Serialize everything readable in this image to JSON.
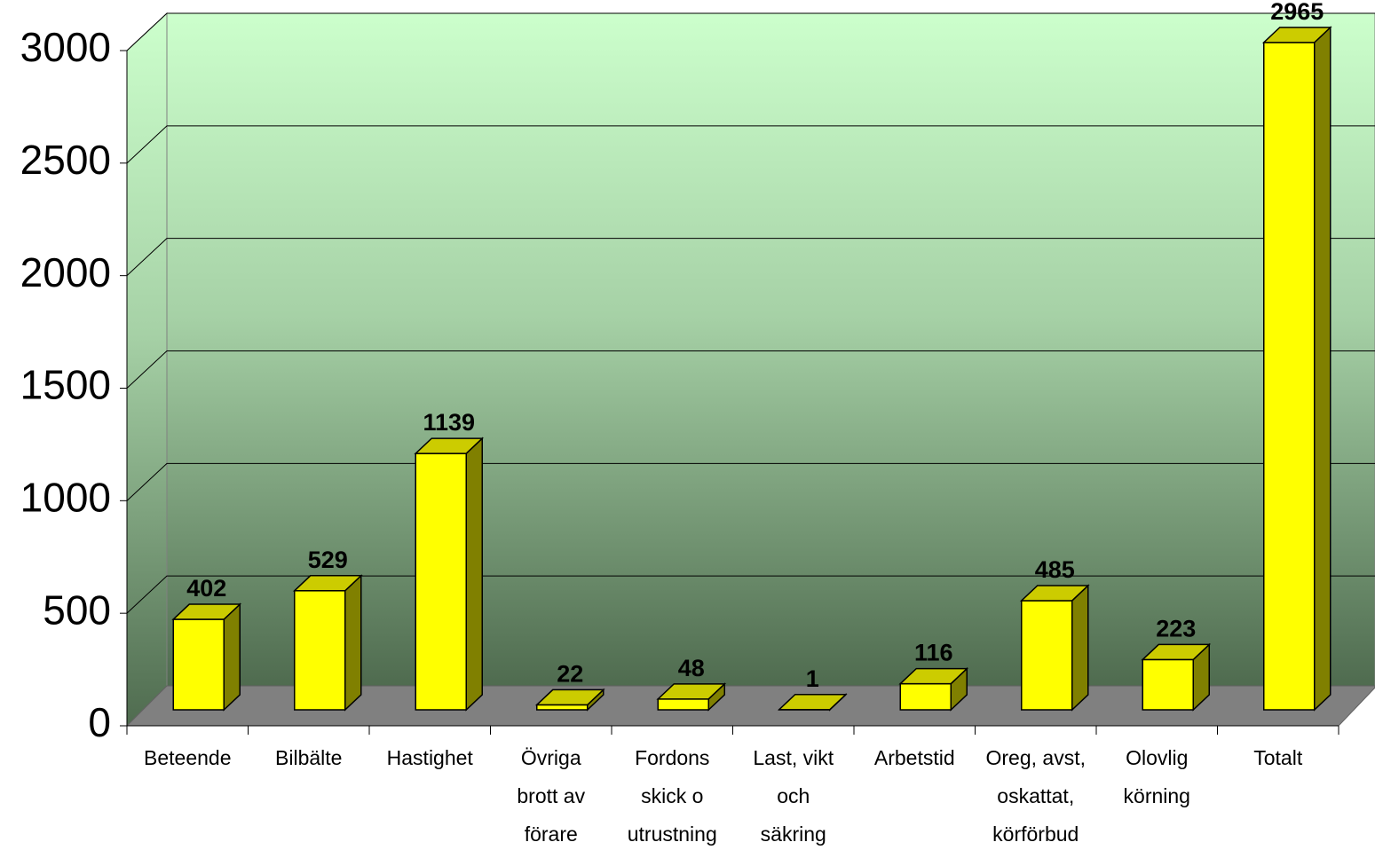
{
  "chart_data": {
    "type": "bar3d",
    "categories": [
      "Beteende",
      "Bilbälte",
      "Hastighet",
      "Övriga\nbrott av\nförare",
      "Fordons\nskick o\nutrustning",
      "Last, vikt\noch\nsäkring",
      "Arbetstid",
      "Oreg, avst,\noskattat,\nkörförbud",
      "Olovlig\nkörning",
      "Totalt"
    ],
    "values": [
      402,
      529,
      1139,
      22,
      48,
      1,
      116,
      485,
      223,
      2965
    ],
    "color": "#ffff00",
    "ylim": [
      0,
      3000
    ],
    "yticks": [
      0,
      500,
      1000,
      1500,
      2000,
      2500,
      3000
    ],
    "grid": true
  }
}
